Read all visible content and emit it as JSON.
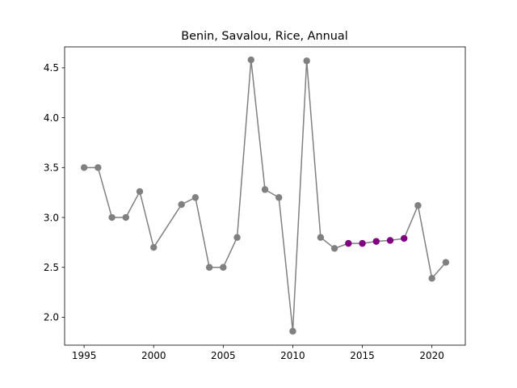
{
  "chart_data": {
    "type": "line",
    "title": "Benin, Savalou, Rice, Annual",
    "xlabel": "",
    "ylabel": "",
    "xlim": [
      1993.6,
      2022.4
    ],
    "ylim": [
      1.72,
      4.71
    ],
    "xticks": [
      1995,
      2000,
      2005,
      2010,
      2015,
      2020
    ],
    "xtick_labels": [
      "1995",
      "2000",
      "2005",
      "2010",
      "2015",
      "2020"
    ],
    "yticks": [
      2.0,
      2.5,
      3.0,
      3.5,
      4.0,
      4.5
    ],
    "ytick_labels": [
      "2.0",
      "2.5",
      "3.0",
      "3.5",
      "4.0",
      "4.5"
    ],
    "grid": false,
    "line_color": "#808080",
    "series": [
      {
        "color": "#808080",
        "points": [
          [
            1995,
            3.5
          ],
          [
            1996,
            3.5
          ],
          [
            1997,
            3.0
          ],
          [
            1998,
            3.0
          ],
          [
            1999,
            3.26
          ],
          [
            2000,
            2.7
          ],
          [
            2002,
            3.13
          ],
          [
            2003,
            3.2
          ],
          [
            2004,
            2.5
          ],
          [
            2005,
            2.5
          ],
          [
            2006,
            2.8
          ],
          [
            2007,
            4.58
          ],
          [
            2008,
            3.28
          ],
          [
            2009,
            3.2
          ],
          [
            2010,
            1.86
          ],
          [
            2011,
            4.57
          ],
          [
            2012,
            2.8
          ],
          [
            2013,
            2.69
          ],
          [
            2019,
            3.12
          ],
          [
            2020,
            2.39
          ],
          [
            2021,
            2.55
          ]
        ]
      },
      {
        "color": "#800080",
        "points": [
          [
            2014,
            2.74
          ],
          [
            2015,
            2.74
          ],
          [
            2016,
            2.76
          ],
          [
            2017,
            2.77
          ],
          [
            2018,
            2.79
          ]
        ]
      }
    ]
  }
}
